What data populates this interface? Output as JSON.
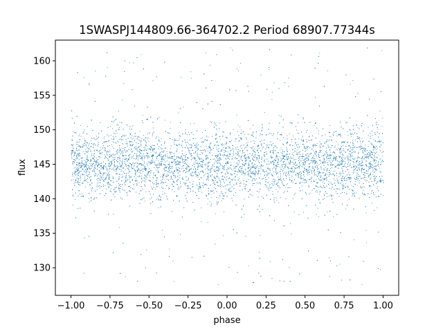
{
  "chart_data": {
    "type": "scatter",
    "title": "1SWASPJ144809.66-364702.2 Period 68907.77344s",
    "xlabel": "phase",
    "ylabel": "flux",
    "xlim": [
      -1.1,
      1.1
    ],
    "ylim": [
      126.0,
      163.0
    ],
    "xticks": [
      -1.0,
      -0.75,
      -0.5,
      -0.25,
      0.0,
      0.25,
      0.5,
      0.75,
      1.0
    ],
    "xtick_labels": [
      "−1.00",
      "−0.75",
      "−0.50",
      "−0.25",
      "0.00",
      "0.25",
      "0.50",
      "0.75",
      "1.00"
    ],
    "yticks": [
      130,
      135,
      140,
      145,
      150,
      155,
      160
    ],
    "ytick_labels": [
      "130",
      "135",
      "140",
      "145",
      "150",
      "155",
      "160"
    ],
    "grid": false,
    "marker_color": "#1f77b4",
    "series": [
      {
        "x_range": [
          -1.0,
          1.0
        ],
        "core_band": [
          139.5,
          150.5
        ],
        "outlier_range": [
          127.5,
          162.0
        ],
        "points": [
          [
            -1.0,
            144.8
          ],
          [
            -0.875,
            145.2
          ],
          [
            -0.75,
            145.0
          ],
          [
            -0.625,
            145.6
          ],
          [
            -0.5,
            145.1
          ],
          [
            -0.375,
            144.6
          ],
          [
            -0.25,
            145.2
          ],
          [
            -0.125,
            145.0
          ],
          [
            0.0,
            144.8
          ],
          [
            0.125,
            145.2
          ],
          [
            0.25,
            145.0
          ],
          [
            0.375,
            145.6
          ],
          [
            0.5,
            145.1
          ],
          [
            0.625,
            144.6
          ],
          [
            0.75,
            145.2
          ],
          [
            0.875,
            145.0
          ],
          [
            1.0,
            144.8
          ]
        ]
      }
    ]
  }
}
